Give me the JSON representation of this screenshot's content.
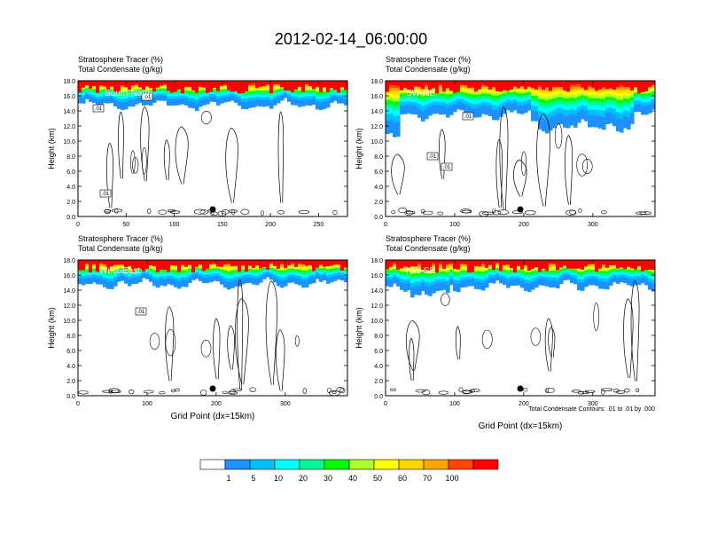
{
  "title": "2012-02-14_06:00:00",
  "chart_data": [
    {
      "type": "heatmap",
      "header_line1": "Stratosphere Tracer   (%)",
      "header_line2": "Total Condensate   (g/kg)",
      "panel_label": "South-North",
      "ylabel": "Height (km)",
      "xlabel": "",
      "xlim": [
        0,
        280
      ],
      "ylim": [
        0,
        18
      ],
      "xticks": [
        0,
        50,
        100,
        150,
        200,
        250
      ],
      "yticks": [
        0,
        2,
        4,
        6,
        8,
        10,
        12,
        14,
        16,
        18
      ],
      "contour_labels": [
        ".01",
        ".01",
        ".01"
      ],
      "tracer_bottom_km": 14.8
    },
    {
      "type": "heatmap",
      "header_line1": "Stratosphere Tracer   (%)",
      "header_line2": "Total Condensate   (g/kg)",
      "panel_label": "SW-NE",
      "ylabel": "Height (km)",
      "xlabel": "",
      "xlim": [
        0,
        390
      ],
      "ylim": [
        0,
        18
      ],
      "xticks": [
        0,
        100,
        200,
        300
      ],
      "yticks": [
        0,
        2,
        4,
        6,
        8,
        10,
        12,
        14,
        16,
        18
      ],
      "contour_labels": [
        ".01",
        ".01",
        ".01"
      ],
      "tracer_bottom_km": 13.5
    },
    {
      "type": "heatmap",
      "header_line1": "Stratosphere Tracer   (%)",
      "header_line2": "Total Condensate   (g/kg)",
      "panel_label": "West-East",
      "ylabel": "Height (km)",
      "xlabel": "Grid Point (dx=15km)",
      "xlim": [
        0,
        390
      ],
      "ylim": [
        0,
        18
      ],
      "xticks": [
        0,
        100,
        200,
        300
      ],
      "yticks": [
        0,
        2,
        4,
        6,
        8,
        10,
        12,
        14,
        16,
        18
      ],
      "contour_labels": [
        ".01"
      ],
      "tracer_bottom_km": 14.8
    },
    {
      "type": "heatmap",
      "header_line1": "Stratosphere Tracer   (%)",
      "header_line2": "Total Condensate   (g/kg)",
      "panel_label": "NW-SE",
      "ylabel": "Height (km)",
      "xlabel": "Grid Point (dx=15km)",
      "xlim": [
        0,
        390
      ],
      "ylim": [
        0,
        18
      ],
      "xticks": [
        0,
        100,
        200,
        300
      ],
      "yticks": [
        0,
        2,
        4,
        6,
        8,
        10,
        12,
        14,
        16,
        18
      ],
      "contour_labels": [],
      "tracer_bottom_km": 14.5
    }
  ],
  "contour_note": "Total Condensate Contours: .01 to .01 by .000",
  "colorbar": {
    "colors": [
      "#ffffff",
      "#1e90ff",
      "#00bfff",
      "#00ffff",
      "#00fa9a",
      "#00ff00",
      "#adff2f",
      "#ffff00",
      "#ffd700",
      "#ffa500",
      "#ff4500",
      "#ff0000"
    ],
    "labels": [
      "1",
      "5",
      "10",
      "20",
      "30",
      "40",
      "50",
      "60",
      "70",
      "100"
    ]
  }
}
